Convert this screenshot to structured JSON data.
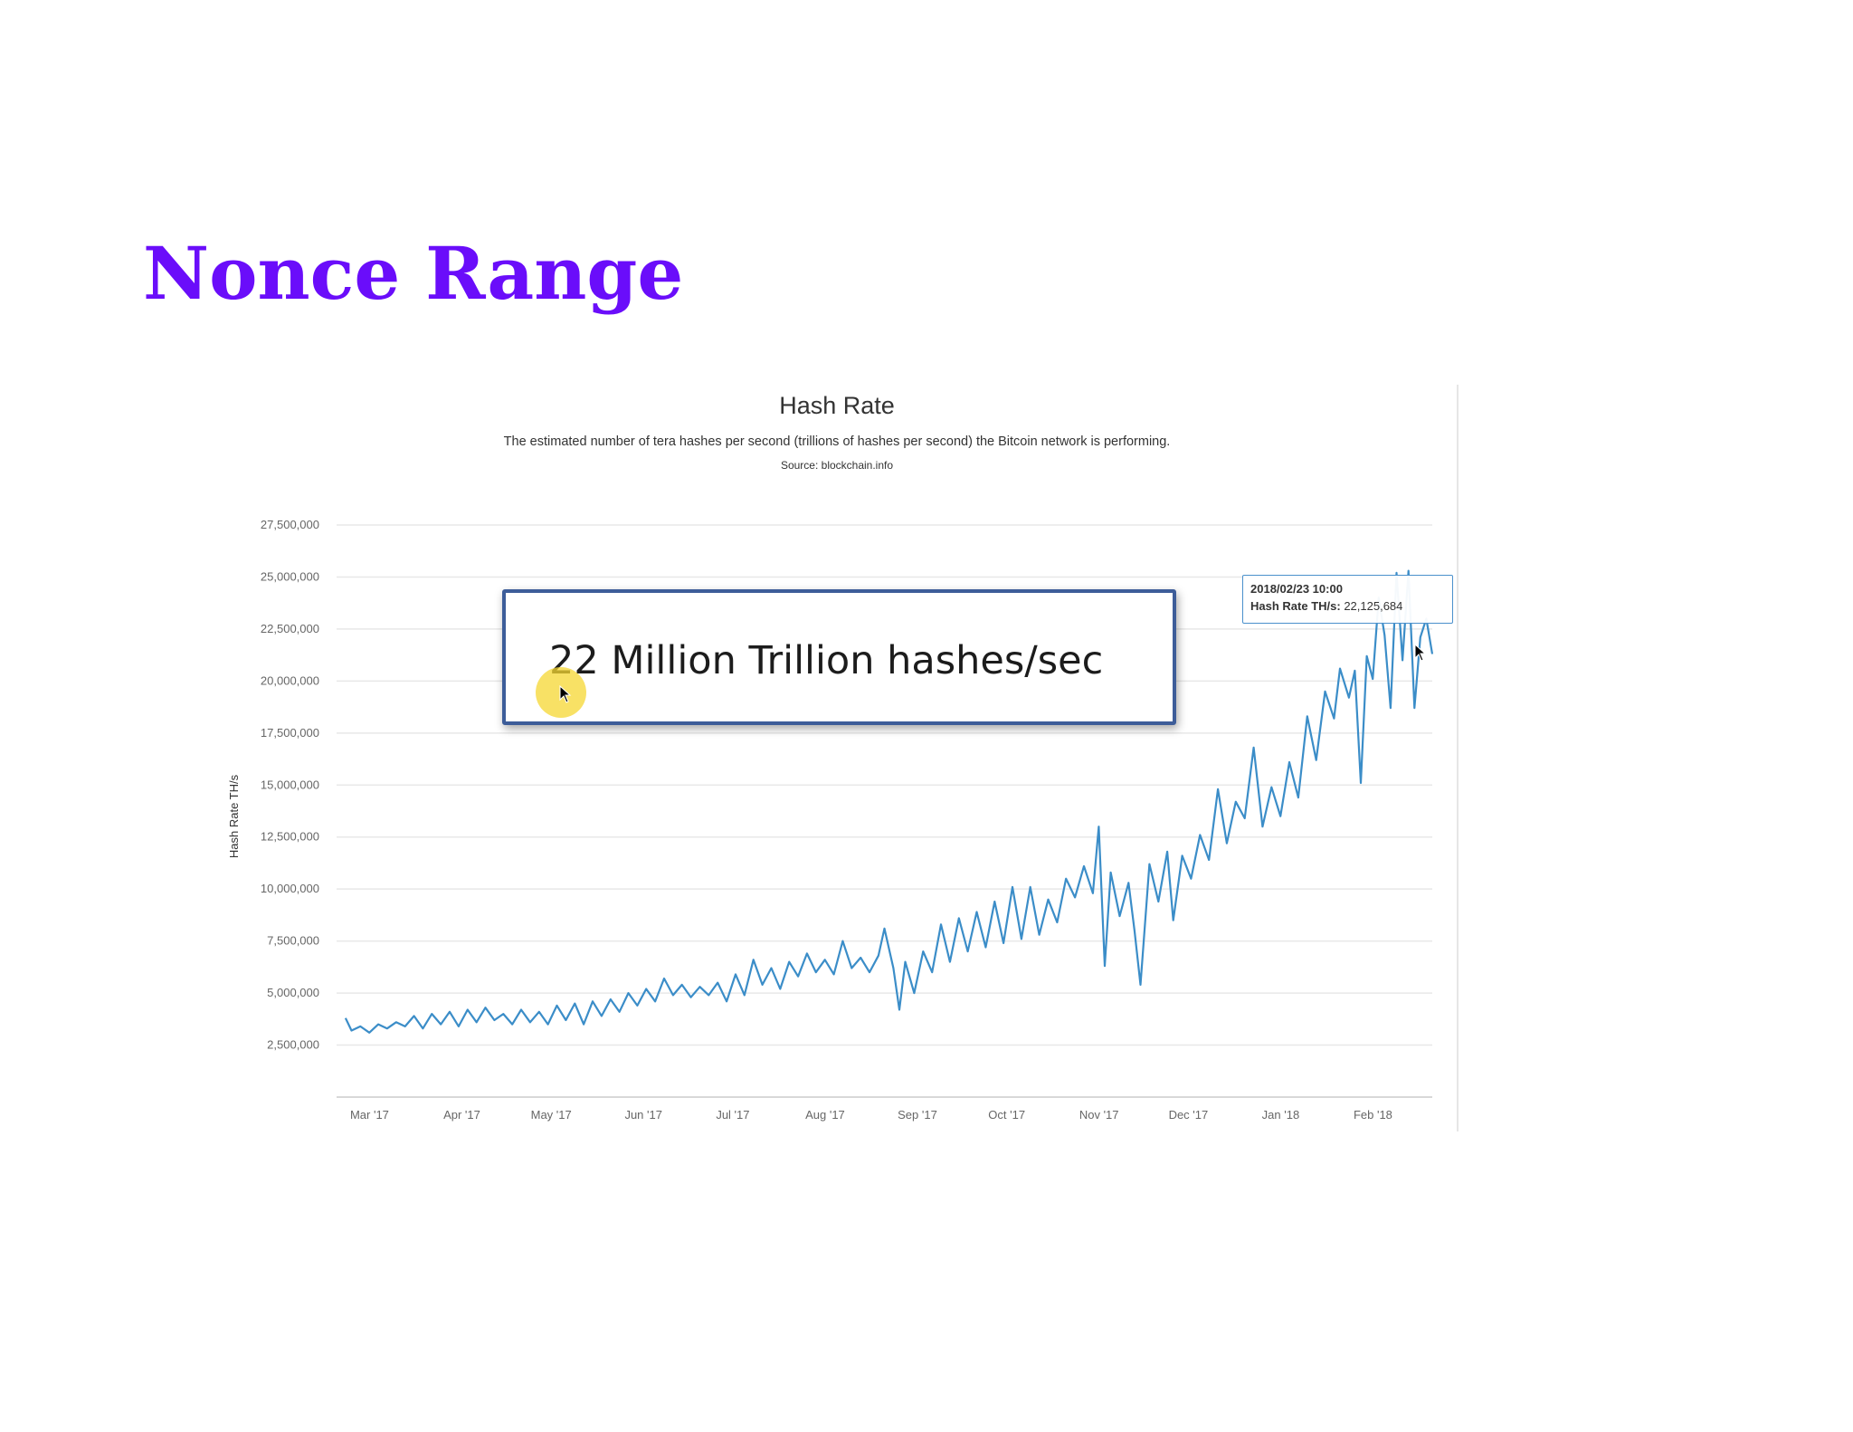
{
  "slide": {
    "title": "Nonce Range"
  },
  "colors": {
    "title": "#6a0dfa",
    "line": "#3b8dc8",
    "grid": "#e8e8e8",
    "callout_border": "#3d5d99",
    "tooltip_border": "#4a90cc",
    "highlight": "#f5d732"
  },
  "callout": {
    "text": "22 Million Trillion hashes/sec"
  },
  "tooltip": {
    "date": "2018/02/23 10:00",
    "label": "Hash Rate TH/s:",
    "value": "22,125,684"
  },
  "icons": [
    "mouse-cursor-icon"
  ],
  "chart_data": {
    "type": "line",
    "title": "Hash Rate",
    "subtitle": "The estimated number of tera hashes per second (trillions of hashes per second) the Bitcoin network is performing.",
    "source": "Source: blockchain.info",
    "xlabel": "",
    "ylabel": "Hash Rate TH/s",
    "ylim": [
      0,
      27500000
    ],
    "xlim": [
      "2017-02-24",
      "2018-02-27"
    ],
    "grid": true,
    "legend": "none",
    "y_ticks": [
      2500000,
      5000000,
      7500000,
      10000000,
      12500000,
      15000000,
      17500000,
      20000000,
      22500000,
      25000000,
      27500000
    ],
    "y_tick_labels": [
      "2,500,000",
      "5,000,000",
      "7,500,000",
      "10,000,000",
      "12,500,000",
      "15,000,000",
      "17,500,000",
      "20,000,000",
      "22,500,000",
      "25,000,000",
      "27,500,000"
    ],
    "x_ticks": [
      "2017-03-01",
      "2017-04-01",
      "2017-05-01",
      "2017-06-01",
      "2017-07-01",
      "2017-08-01",
      "2017-09-01",
      "2017-10-01",
      "2017-11-01",
      "2017-12-01",
      "2018-01-01",
      "2018-02-01"
    ],
    "x_tick_labels": [
      "Mar '17",
      "Apr '17",
      "May '17",
      "Jun '17",
      "Jul '17",
      "Aug '17",
      "Sep '17",
      "Oct '17",
      "Nov '17",
      "Dec '17",
      "Jan '18",
      "Feb '18"
    ],
    "series": [
      {
        "values": [
          [
            "2017-02-27",
            3800000
          ],
          [
            "2017-03-01",
            3200000
          ],
          [
            "2017-03-04",
            3400000
          ],
          [
            "2017-03-07",
            3100000
          ],
          [
            "2017-03-10",
            3500000
          ],
          [
            "2017-03-13",
            3300000
          ],
          [
            "2017-03-16",
            3600000
          ],
          [
            "2017-03-19",
            3400000
          ],
          [
            "2017-03-22",
            3900000
          ],
          [
            "2017-03-25",
            3300000
          ],
          [
            "2017-03-28",
            4000000
          ],
          [
            "2017-03-31",
            3500000
          ],
          [
            "2017-04-03",
            4100000
          ],
          [
            "2017-04-06",
            3400000
          ],
          [
            "2017-04-09",
            4200000
          ],
          [
            "2017-04-12",
            3600000
          ],
          [
            "2017-04-15",
            4300000
          ],
          [
            "2017-04-18",
            3700000
          ],
          [
            "2017-04-21",
            4000000
          ],
          [
            "2017-04-24",
            3500000
          ],
          [
            "2017-04-27",
            4200000
          ],
          [
            "2017-04-30",
            3600000
          ],
          [
            "2017-05-03",
            4100000
          ],
          [
            "2017-05-06",
            3500000
          ],
          [
            "2017-05-09",
            4400000
          ],
          [
            "2017-05-12",
            3700000
          ],
          [
            "2017-05-15",
            4500000
          ],
          [
            "2017-05-18",
            3500000
          ],
          [
            "2017-05-21",
            4600000
          ],
          [
            "2017-05-24",
            3900000
          ],
          [
            "2017-05-27",
            4700000
          ],
          [
            "2017-05-30",
            4100000
          ],
          [
            "2017-06-02",
            5000000
          ],
          [
            "2017-06-05",
            4400000
          ],
          [
            "2017-06-08",
            5200000
          ],
          [
            "2017-06-11",
            4600000
          ],
          [
            "2017-06-14",
            5700000
          ],
          [
            "2017-06-17",
            4900000
          ],
          [
            "2017-06-20",
            5400000
          ],
          [
            "2017-06-23",
            4800000
          ],
          [
            "2017-06-26",
            5300000
          ],
          [
            "2017-06-29",
            4900000
          ],
          [
            "2017-07-02",
            5500000
          ],
          [
            "2017-07-05",
            4600000
          ],
          [
            "2017-07-08",
            5900000
          ],
          [
            "2017-07-11",
            4900000
          ],
          [
            "2017-07-14",
            6600000
          ],
          [
            "2017-07-17",
            5400000
          ],
          [
            "2017-07-20",
            6200000
          ],
          [
            "2017-07-23",
            5200000
          ],
          [
            "2017-07-26",
            6500000
          ],
          [
            "2017-07-29",
            5800000
          ],
          [
            "2017-08-01",
            6900000
          ],
          [
            "2017-08-04",
            6000000
          ],
          [
            "2017-08-07",
            6600000
          ],
          [
            "2017-08-10",
            5900000
          ],
          [
            "2017-08-13",
            7500000
          ],
          [
            "2017-08-16",
            6200000
          ],
          [
            "2017-08-19",
            6700000
          ],
          [
            "2017-08-22",
            6000000
          ],
          [
            "2017-08-25",
            6800000
          ],
          [
            "2017-08-27",
            8100000
          ],
          [
            "2017-08-30",
            6200000
          ],
          [
            "2017-09-01",
            4200000
          ],
          [
            "2017-09-03",
            6500000
          ],
          [
            "2017-09-06",
            5000000
          ],
          [
            "2017-09-09",
            7000000
          ],
          [
            "2017-09-12",
            6000000
          ],
          [
            "2017-09-15",
            8300000
          ],
          [
            "2017-09-18",
            6500000
          ],
          [
            "2017-09-21",
            8600000
          ],
          [
            "2017-09-24",
            7000000
          ],
          [
            "2017-09-27",
            8900000
          ],
          [
            "2017-09-30",
            7200000
          ],
          [
            "2017-10-03",
            9400000
          ],
          [
            "2017-10-06",
            7400000
          ],
          [
            "2017-10-09",
            10100000
          ],
          [
            "2017-10-12",
            7600000
          ],
          [
            "2017-10-15",
            10100000
          ],
          [
            "2017-10-18",
            7800000
          ],
          [
            "2017-10-21",
            9500000
          ],
          [
            "2017-10-24",
            8400000
          ],
          [
            "2017-10-27",
            10500000
          ],
          [
            "2017-10-30",
            9600000
          ],
          [
            "2017-11-02",
            11100000
          ],
          [
            "2017-11-05",
            9800000
          ],
          [
            "2017-11-07",
            13000000
          ],
          [
            "2017-11-09",
            6300000
          ],
          [
            "2017-11-11",
            10800000
          ],
          [
            "2017-11-14",
            8700000
          ],
          [
            "2017-11-17",
            10300000
          ],
          [
            "2017-11-19",
            8000000
          ],
          [
            "2017-11-21",
            5400000
          ],
          [
            "2017-11-24",
            11200000
          ],
          [
            "2017-11-27",
            9400000
          ],
          [
            "2017-11-30",
            11800000
          ],
          [
            "2017-12-02",
            8500000
          ],
          [
            "2017-12-05",
            11600000
          ],
          [
            "2017-12-08",
            10500000
          ],
          [
            "2017-12-11",
            12600000
          ],
          [
            "2017-12-14",
            11400000
          ],
          [
            "2017-12-17",
            14800000
          ],
          [
            "2017-12-20",
            12200000
          ],
          [
            "2017-12-23",
            14200000
          ],
          [
            "2017-12-26",
            13400000
          ],
          [
            "2017-12-29",
            16800000
          ],
          [
            "2018-01-01",
            13000000
          ],
          [
            "2018-01-04",
            14900000
          ],
          [
            "2018-01-07",
            13500000
          ],
          [
            "2018-01-10",
            16100000
          ],
          [
            "2018-01-13",
            14400000
          ],
          [
            "2018-01-16",
            18300000
          ],
          [
            "2018-01-19",
            16200000
          ],
          [
            "2018-01-22",
            19500000
          ],
          [
            "2018-01-25",
            18200000
          ],
          [
            "2018-01-27",
            20600000
          ],
          [
            "2018-01-30",
            19200000
          ],
          [
            "2018-02-01",
            20500000
          ],
          [
            "2018-02-03",
            15100000
          ],
          [
            "2018-02-05",
            21200000
          ],
          [
            "2018-02-07",
            20100000
          ],
          [
            "2018-02-09",
            24000000
          ],
          [
            "2018-02-11",
            22200000
          ],
          [
            "2018-02-13",
            18700000
          ],
          [
            "2018-02-15",
            25200000
          ],
          [
            "2018-02-17",
            21000000
          ],
          [
            "2018-02-19",
            25300000
          ],
          [
            "2018-02-21",
            18700000
          ],
          [
            "2018-02-23",
            22100000
          ],
          [
            "2018-02-25",
            23000000
          ],
          [
            "2018-02-27",
            21300000
          ]
        ]
      }
    ]
  }
}
